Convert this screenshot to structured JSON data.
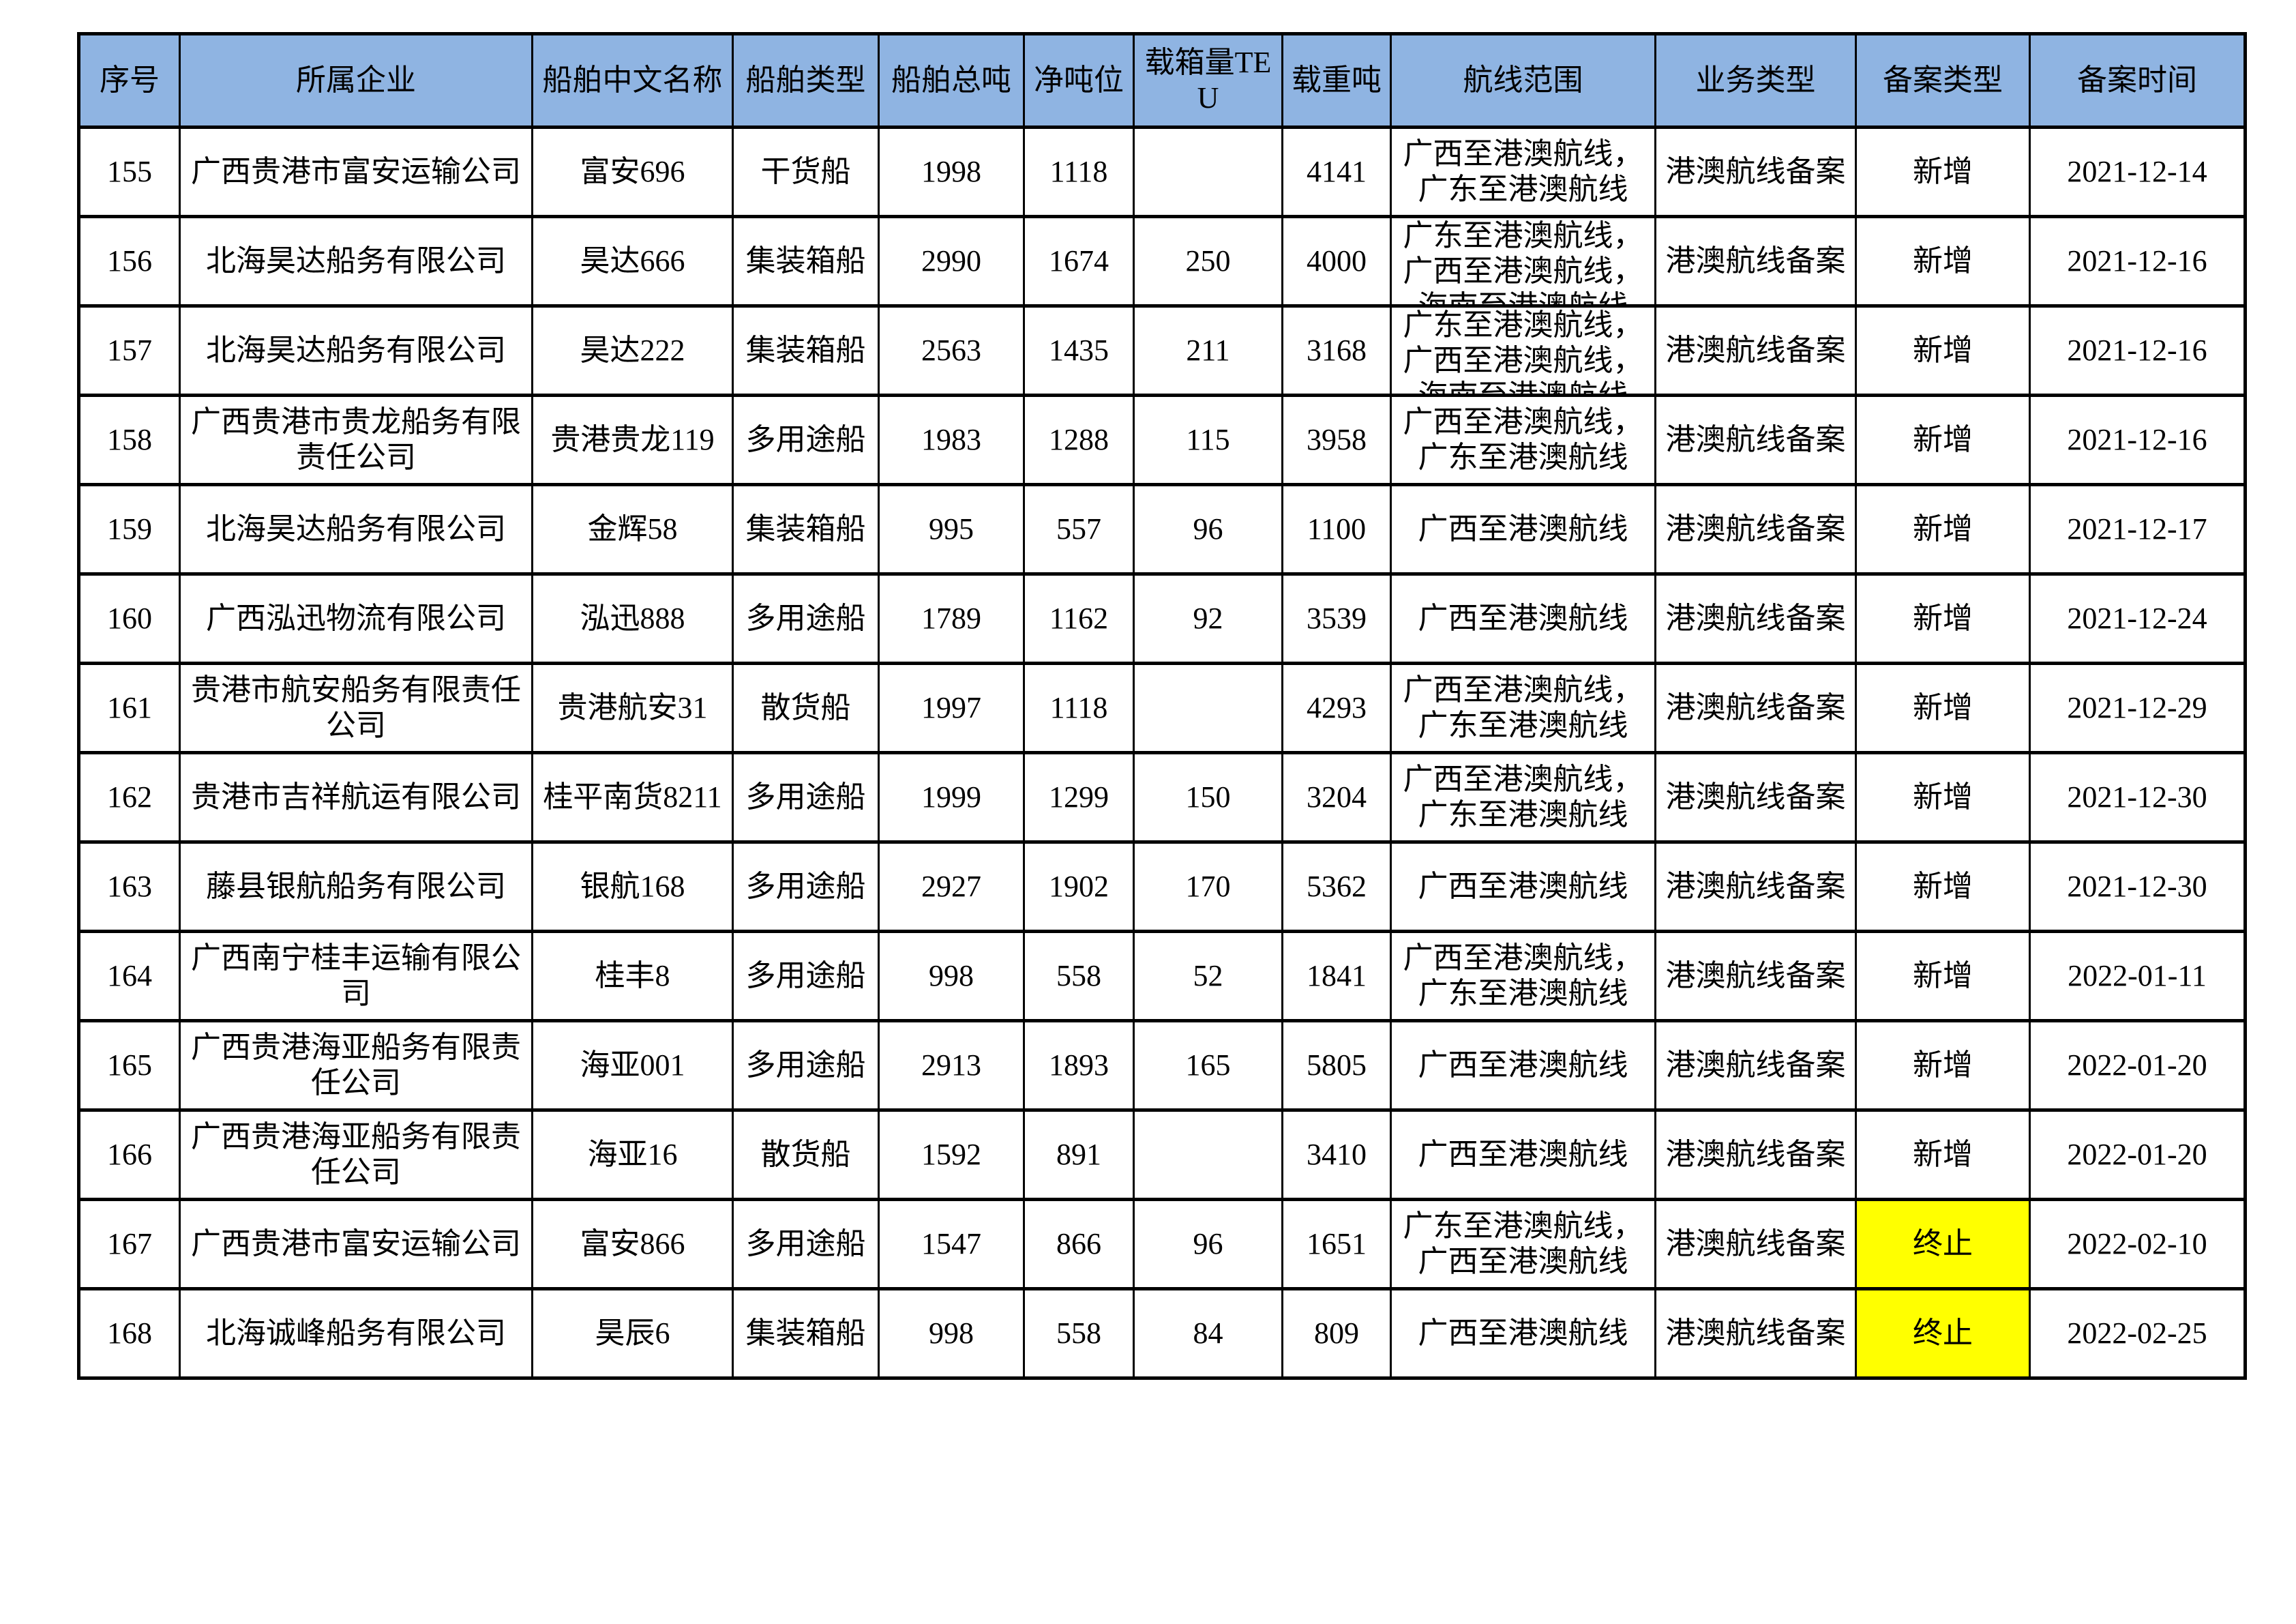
{
  "table": {
    "colors": {
      "header_bg": "#8FB4E2",
      "highlight_bg": "#FFFF00",
      "border": "#000000"
    },
    "columns": [
      {
        "key": "seq",
        "label": "序号"
      },
      {
        "key": "company",
        "label": "所属企业"
      },
      {
        "key": "ship_name",
        "label": "船舶中文名称"
      },
      {
        "key": "ship_type",
        "label": "船舶类型"
      },
      {
        "key": "gross_tonnage",
        "label": "船舶总吨"
      },
      {
        "key": "net_tonnage",
        "label": "净吨位"
      },
      {
        "key": "teu",
        "label": "载箱量TEU"
      },
      {
        "key": "deadweight",
        "label": "载重吨"
      },
      {
        "key": "route",
        "label": "航线范围"
      },
      {
        "key": "business_type",
        "label": "业务类型"
      },
      {
        "key": "record_type",
        "label": "备案类型"
      },
      {
        "key": "record_date",
        "label": "备案时间"
      }
    ],
    "rows": [
      {
        "seq": "155",
        "company": "广西贵港市富安运输公司",
        "ship_name": "富安696",
        "ship_type": "干货船",
        "gross_tonnage": "1998",
        "net_tonnage": "1118",
        "teu": "",
        "deadweight": "4141",
        "route": "广西至港澳航线，\n广东至港澳航线",
        "route_clipped": false,
        "business_type": "港澳航线备案",
        "record_type": "新增",
        "record_type_highlight": false,
        "record_date": "2021-12-14"
      },
      {
        "seq": "156",
        "company": "北海昊达船务有限公司",
        "ship_name": "昊达666",
        "ship_type": "集装箱船",
        "gross_tonnage": "2990",
        "net_tonnage": "1674",
        "teu": "250",
        "deadweight": "4000",
        "route": "广东至港澳航线，\n广西至港澳航线，\n海南至港澳航线",
        "route_clipped": true,
        "business_type": "港澳航线备案",
        "record_type": "新增",
        "record_type_highlight": false,
        "record_date": "2021-12-16"
      },
      {
        "seq": "157",
        "company": "北海昊达船务有限公司",
        "ship_name": "昊达222",
        "ship_type": "集装箱船",
        "gross_tonnage": "2563",
        "net_tonnage": "1435",
        "teu": "211",
        "deadweight": "3168",
        "route": "广东至港澳航线，\n广西至港澳航线，\n海南至港澳航线",
        "route_clipped": true,
        "business_type": "港澳航线备案",
        "record_type": "新增",
        "record_type_highlight": false,
        "record_date": "2021-12-16"
      },
      {
        "seq": "158",
        "company": "广西贵港市贵龙船务有限责任公司",
        "ship_name": "贵港贵龙119",
        "ship_type": "多用途船",
        "gross_tonnage": "1983",
        "net_tonnage": "1288",
        "teu": "115",
        "deadweight": "3958",
        "route": "广西至港澳航线，\n广东至港澳航线",
        "route_clipped": false,
        "business_type": "港澳航线备案",
        "record_type": "新增",
        "record_type_highlight": false,
        "record_date": "2021-12-16"
      },
      {
        "seq": "159",
        "company": "北海昊达船务有限公司",
        "ship_name": "金辉58",
        "ship_type": "集装箱船",
        "gross_tonnage": "995",
        "net_tonnage": "557",
        "teu": "96",
        "deadweight": "1100",
        "route": "广西至港澳航线",
        "route_clipped": false,
        "business_type": "港澳航线备案",
        "record_type": "新增",
        "record_type_highlight": false,
        "record_date": "2021-12-17"
      },
      {
        "seq": "160",
        "company": "广西泓迅物流有限公司",
        "ship_name": "泓迅888",
        "ship_type": "多用途船",
        "gross_tonnage": "1789",
        "net_tonnage": "1162",
        "teu": "92",
        "deadweight": "3539",
        "route": "广西至港澳航线",
        "route_clipped": false,
        "business_type": "港澳航线备案",
        "record_type": "新增",
        "record_type_highlight": false,
        "record_date": "2021-12-24"
      },
      {
        "seq": "161",
        "company": "贵港市航安船务有限责任公司",
        "ship_name": "贵港航安31",
        "ship_type": "散货船",
        "gross_tonnage": "1997",
        "net_tonnage": "1118",
        "teu": "",
        "deadweight": "4293",
        "route": "广西至港澳航线，\n广东至港澳航线",
        "route_clipped": false,
        "business_type": "港澳航线备案",
        "record_type": "新增",
        "record_type_highlight": false,
        "record_date": "2021-12-29"
      },
      {
        "seq": "162",
        "company": "贵港市吉祥航运有限公司",
        "ship_name": "桂平南货8211",
        "ship_type": "多用途船",
        "gross_tonnage": "1999",
        "net_tonnage": "1299",
        "teu": "150",
        "deadweight": "3204",
        "route": "广西至港澳航线，\n广东至港澳航线",
        "route_clipped": false,
        "business_type": "港澳航线备案",
        "record_type": "新增",
        "record_type_highlight": false,
        "record_date": "2021-12-30"
      },
      {
        "seq": "163",
        "company": "藤县银航船务有限公司",
        "ship_name": "银航168",
        "ship_type": "多用途船",
        "gross_tonnage": "2927",
        "net_tonnage": "1902",
        "teu": "170",
        "deadweight": "5362",
        "route": "广西至港澳航线",
        "route_clipped": false,
        "business_type": "港澳航线备案",
        "record_type": "新增",
        "record_type_highlight": false,
        "record_date": "2021-12-30"
      },
      {
        "seq": "164",
        "company": "广西南宁桂丰运输有限公司",
        "ship_name": "桂丰8",
        "ship_type": "多用途船",
        "gross_tonnage": "998",
        "net_tonnage": "558",
        "teu": "52",
        "deadweight": "1841",
        "route": "广西至港澳航线，\n广东至港澳航线",
        "route_clipped": false,
        "business_type": "港澳航线备案",
        "record_type": "新增",
        "record_type_highlight": false,
        "record_date": "2022-01-11"
      },
      {
        "seq": "165",
        "company": "广西贵港海亚船务有限责任公司",
        "ship_name": "海亚001",
        "ship_type": "多用途船",
        "gross_tonnage": "2913",
        "net_tonnage": "1893",
        "teu": "165",
        "deadweight": "5805",
        "route": "广西至港澳航线",
        "route_clipped": false,
        "business_type": "港澳航线备案",
        "record_type": "新增",
        "record_type_highlight": false,
        "record_date": "2022-01-20"
      },
      {
        "seq": "166",
        "company": "广西贵港海亚船务有限责任公司",
        "ship_name": "海亚16",
        "ship_type": "散货船",
        "gross_tonnage": "1592",
        "net_tonnage": "891",
        "teu": "",
        "deadweight": "3410",
        "route": "广西至港澳航线",
        "route_clipped": false,
        "business_type": "港澳航线备案",
        "record_type": "新增",
        "record_type_highlight": false,
        "record_date": "2022-01-20"
      },
      {
        "seq": "167",
        "company": "广西贵港市富安运输公司",
        "ship_name": "富安866",
        "ship_type": "多用途船",
        "gross_tonnage": "1547",
        "net_tonnage": "866",
        "teu": "96",
        "deadweight": "1651",
        "route": "广东至港澳航线，\n广西至港澳航线",
        "route_clipped": false,
        "business_type": "港澳航线备案",
        "record_type": "终止",
        "record_type_highlight": true,
        "record_date": "2022-02-10"
      },
      {
        "seq": "168",
        "company": "北海诚峰船务有限公司",
        "ship_name": "昊辰6",
        "ship_type": "集装箱船",
        "gross_tonnage": "998",
        "net_tonnage": "558",
        "teu": "84",
        "deadweight": "809",
        "route": "广西至港澳航线",
        "route_clipped": false,
        "business_type": "港澳航线备案",
        "record_type": "终止",
        "record_type_highlight": true,
        "record_date": "2022-02-25"
      }
    ]
  }
}
